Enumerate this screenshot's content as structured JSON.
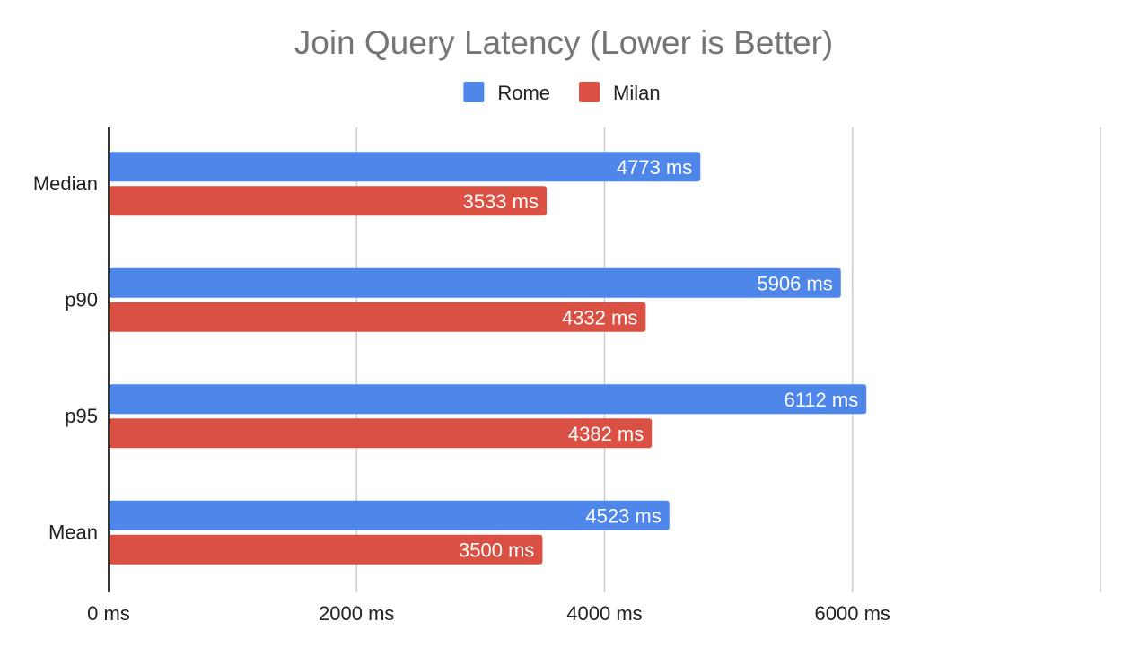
{
  "chart_data": {
    "type": "bar",
    "orientation": "horizontal",
    "title": "Join Query Latency (Lower is Better)",
    "categories": [
      "Median",
      "p90",
      "p95",
      "Mean"
    ],
    "series": [
      {
        "name": "Rome",
        "color": "#4e86ea",
        "values": [
          4773,
          5906,
          6112,
          4523
        ],
        "labels": [
          "4773 ms",
          "5906 ms",
          "6112 ms",
          "4523 ms"
        ]
      },
      {
        "name": "Milan",
        "color": "#da5143",
        "values": [
          3533,
          4332,
          4382,
          3500
        ],
        "labels": [
          "3533 ms",
          "4332 ms",
          "4382 ms",
          "3500 ms"
        ]
      }
    ],
    "xlim": [
      0,
      8000
    ],
    "x_ticks": [
      0,
      2000,
      4000,
      6000,
      8000
    ],
    "x_tick_labels": [
      "0 ms",
      "2000 ms",
      "4000 ms",
      "6000 ms",
      ""
    ],
    "grid": true,
    "legend_position": "top-center",
    "colors": {
      "title": "#757575",
      "text": "#222222",
      "grid": "#cccccc",
      "axis": "#333333",
      "data_label": "#ffffff"
    }
  }
}
